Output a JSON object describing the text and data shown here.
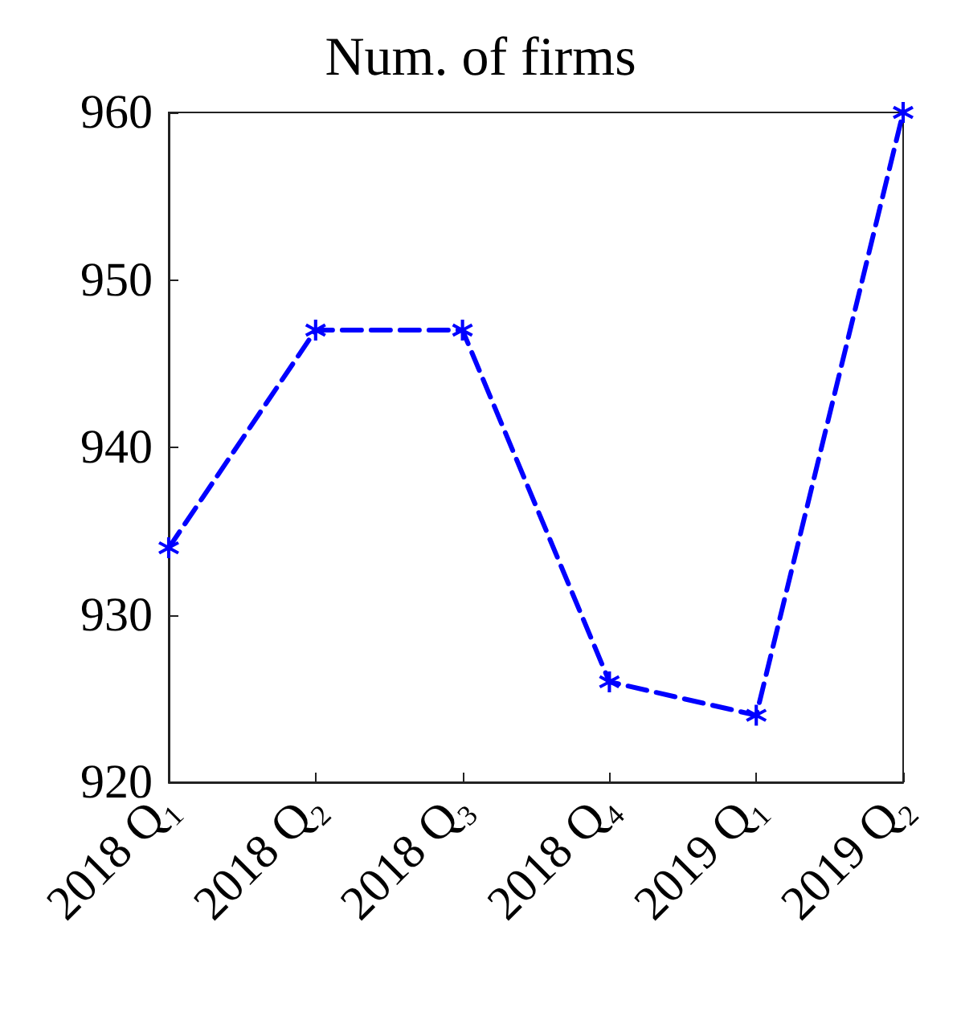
{
  "chart_data": {
    "type": "line",
    "title": "Num. of firms",
    "categories": [
      "2018 Q₁",
      "2018 Q₂",
      "2018 Q₃",
      "2018 Q₄",
      "2019 Q₁",
      "2019 Q₂"
    ],
    "series": [
      {
        "color": "#0000ff",
        "values": [
          934,
          947,
          947,
          926,
          924,
          960
        ]
      }
    ],
    "ylim": [
      920,
      960
    ],
    "yticks": [
      920,
      930,
      940,
      950,
      960
    ],
    "grid": false,
    "marker": "star",
    "line_style": "dashed"
  }
}
